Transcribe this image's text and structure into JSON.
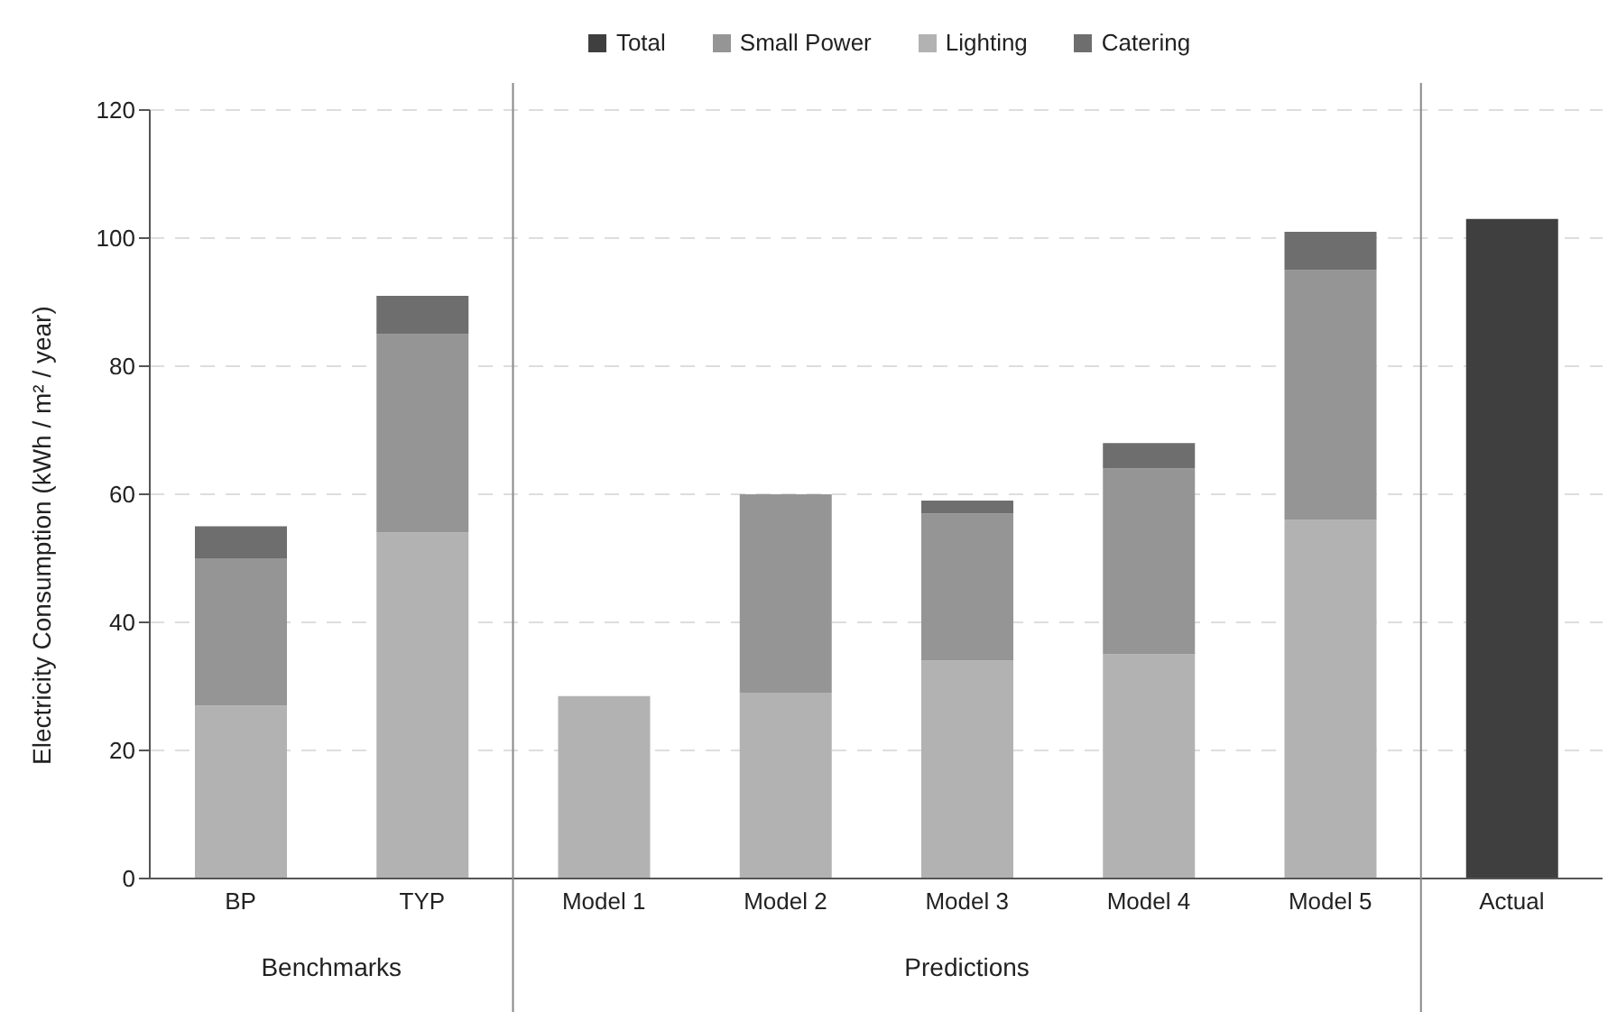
{
  "chart_data": {
    "type": "bar",
    "stacked": true,
    "ylabel": "Electricity Consumption (kWh / m² / year)",
    "categories": [
      "BP",
      "TYP",
      "Model 1",
      "Model 2",
      "Model 3",
      "Model 4",
      "Model 5",
      "Actual"
    ],
    "series": [
      {
        "name": "Lighting",
        "color": "#b2b2b2",
        "values": [
          27,
          54,
          28.5,
          29,
          34,
          35,
          56,
          null
        ]
      },
      {
        "name": "Small Power",
        "color": "#959595",
        "values": [
          23,
          31,
          null,
          31,
          23,
          29,
          39,
          null
        ]
      },
      {
        "name": "Catering",
        "color": "#6e6e6e",
        "values": [
          5,
          6,
          null,
          null,
          2,
          4,
          6,
          null
        ]
      },
      {
        "name": "Total",
        "color": "#3f3f3f",
        "values": [
          null,
          null,
          null,
          null,
          null,
          null,
          null,
          103
        ]
      }
    ],
    "annotations": [
      "Benchmarks",
      "Predictions"
    ],
    "ylim": [
      0,
      120
    ],
    "yticks": [
      0,
      20,
      40,
      60,
      80,
      100,
      120
    ],
    "grid": "y",
    "legend": "top"
  }
}
